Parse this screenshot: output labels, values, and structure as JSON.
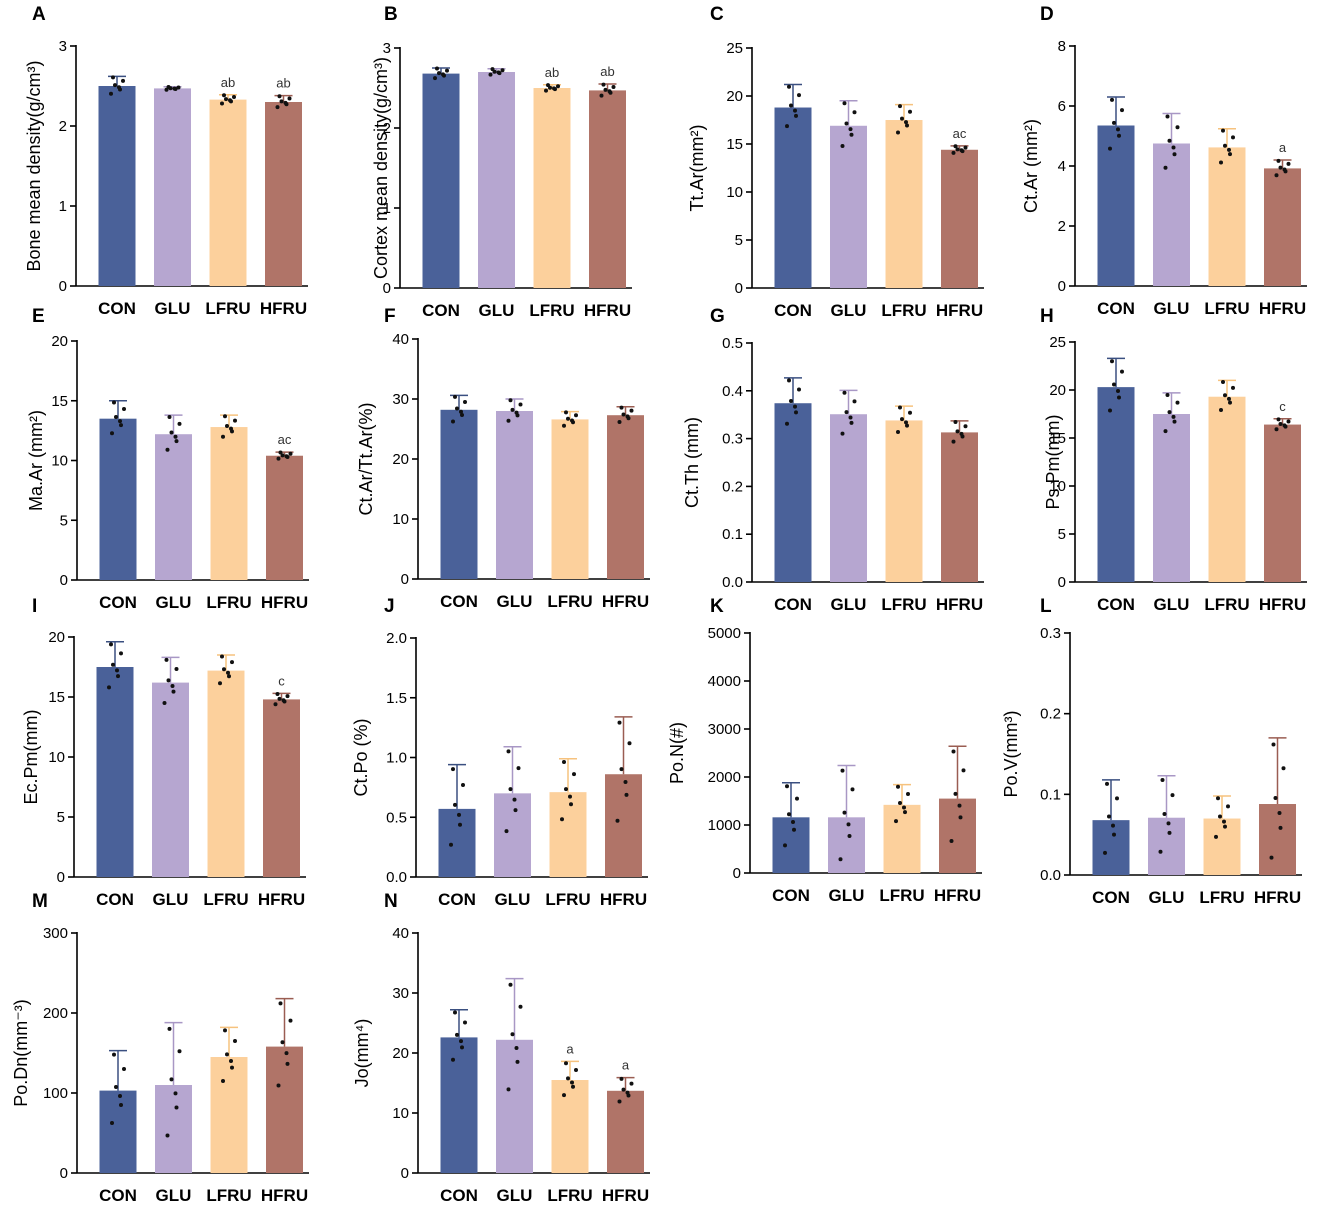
{
  "colors": [
    "#4a6199",
    "#b6a6d0",
    "#fcd09c",
    "#b07468"
  ],
  "chart_data": [
    {
      "type": "bar",
      "panel": "A",
      "ylabel": "Bone mean density(g/cm³)",
      "categories": [
        "CON",
        "GLU",
        "LFRU",
        "HFRU"
      ],
      "ylim": [
        0,
        3
      ],
      "yticks": [
        "0",
        "1",
        "2",
        "3"
      ],
      "values": [
        2.5,
        2.47,
        2.33,
        2.3
      ],
      "errors": [
        0.12,
        0.02,
        0.06,
        0.08
      ],
      "annotations": [
        "",
        "",
        "ab",
        "ab"
      ]
    },
    {
      "type": "bar",
      "panel": "B",
      "ylabel": "Cortex mean density(g/cm³)",
      "categories": [
        "CON",
        "GLU",
        "LFRU",
        "HFRU"
      ],
      "ylim": [
        0,
        3
      ],
      "yticks": [
        "0",
        "1",
        "2",
        "3"
      ],
      "values": [
        2.68,
        2.7,
        2.5,
        2.47
      ],
      "errors": [
        0.07,
        0.04,
        0.04,
        0.08
      ],
      "annotations": [
        "",
        "",
        "ab",
        "ab"
      ]
    },
    {
      "type": "bar",
      "panel": "C",
      "ylabel": "Tt.Ar(mm²)",
      "categories": [
        "CON",
        "GLU",
        "LFRU",
        "HFRU"
      ],
      "ylim": [
        0,
        25
      ],
      "yticks": [
        "0",
        "5",
        "10",
        "15",
        "20",
        "25"
      ],
      "values": [
        18.8,
        16.9,
        17.5,
        14.4
      ],
      "errors": [
        2.4,
        2.6,
        1.6,
        0.4
      ],
      "annotations": [
        "",
        "",
        "",
        "ac"
      ]
    },
    {
      "type": "bar",
      "panel": "D",
      "ylabel": "Ct.Ar (mm²)",
      "categories": [
        "CON",
        "GLU",
        "LFRU",
        "HFRU"
      ],
      "ylim": [
        0,
        8
      ],
      "yticks": [
        "0",
        "2",
        "4",
        "6",
        "8"
      ],
      "values": [
        5.35,
        4.75,
        4.62,
        3.92
      ],
      "errors": [
        0.95,
        1.0,
        0.62,
        0.28
      ],
      "annotations": [
        "",
        "",
        "",
        "a"
      ]
    },
    {
      "type": "bar",
      "panel": "E",
      "ylabel": "Ma.Ar (mm²)",
      "categories": [
        "CON",
        "GLU",
        "LFRU",
        "HFRU"
      ],
      "ylim": [
        0,
        20
      ],
      "yticks": [
        "0",
        "5",
        "10",
        "15",
        "20"
      ],
      "values": [
        13.5,
        12.2,
        12.8,
        10.4
      ],
      "errors": [
        1.5,
        1.6,
        1.0,
        0.3
      ],
      "annotations": [
        "",
        "",
        "",
        "ac"
      ]
    },
    {
      "type": "bar",
      "panel": "F",
      "ylabel": "Ct.Ar/Tt.Ar(%)",
      "categories": [
        "CON",
        "GLU",
        "LFRU",
        "HFRU"
      ],
      "ylim": [
        0,
        40
      ],
      "yticks": [
        "0",
        "10",
        "20",
        "30",
        "40"
      ],
      "values": [
        28.2,
        28.0,
        26.6,
        27.3
      ],
      "errors": [
        2.4,
        2.0,
        1.3,
        1.4
      ],
      "annotations": [
        "",
        "",
        "",
        ""
      ]
    },
    {
      "type": "bar",
      "panel": "G",
      "ylabel": "Ct.Th (mm)",
      "categories": [
        "CON",
        "GLU",
        "LFRU",
        "HFRU"
      ],
      "ylim": [
        0,
        0.5
      ],
      "yticks": [
        "0.0",
        "0.1",
        "0.2",
        "0.3",
        "0.4",
        "0.5"
      ],
      "values": [
        0.374,
        0.351,
        0.338,
        0.313
      ],
      "errors": [
        0.053,
        0.05,
        0.03,
        0.024
      ],
      "annotations": [
        "",
        "",
        "",
        ""
      ]
    },
    {
      "type": "bar",
      "panel": "H",
      "ylabel": "Ps.Pm(mm)",
      "categories": [
        "CON",
        "GLU",
        "LFRU",
        "HFRU"
      ],
      "ylim": [
        0,
        25
      ],
      "yticks": [
        "0",
        "5",
        "10",
        "15",
        "20",
        "25"
      ],
      "values": [
        20.3,
        17.5,
        19.3,
        16.4
      ],
      "errors": [
        3.0,
        2.2,
        1.7,
        0.6
      ],
      "annotations": [
        "",
        "",
        "",
        "c"
      ]
    },
    {
      "type": "bar",
      "panel": "I",
      "ylabel": "Ec.Pm(mm)",
      "categories": [
        "CON",
        "GLU",
        "LFRU",
        "HFRU"
      ],
      "ylim": [
        0,
        20
      ],
      "yticks": [
        "0",
        "5",
        "10",
        "15",
        "20"
      ],
      "values": [
        17.5,
        16.2,
        17.2,
        14.8
      ],
      "errors": [
        2.1,
        2.1,
        1.3,
        0.5
      ],
      "annotations": [
        "",
        "",
        "",
        "c"
      ]
    },
    {
      "type": "bar",
      "panel": "J",
      "ylabel": "Ct.Po (%)",
      "categories": [
        "CON",
        "GLU",
        "LFRU",
        "HFRU"
      ],
      "ylim": [
        0,
        2
      ],
      "yticks": [
        "0.0",
        "0.5",
        "1.0",
        "1.5",
        "2.0"
      ],
      "values": [
        0.57,
        0.7,
        0.71,
        0.86
      ],
      "errors": [
        0.37,
        0.39,
        0.28,
        0.48
      ],
      "annotations": [
        "",
        "",
        "",
        ""
      ]
    },
    {
      "type": "bar",
      "panel": "K",
      "ylabel": "Po.N(#)",
      "categories": [
        "CON",
        "GLU",
        "LFRU",
        "HFRU"
      ],
      "ylim": [
        0,
        5000
      ],
      "yticks": [
        "0",
        "1000",
        "2000",
        "3000",
        "4000",
        "5000"
      ],
      "values": [
        1160,
        1160,
        1420,
        1550
      ],
      "errors": [
        720,
        1080,
        420,
        1090
      ],
      "annotations": [
        "",
        "",
        "",
        ""
      ]
    },
    {
      "type": "bar",
      "panel": "L",
      "ylabel": "Po.V(mm³)",
      "categories": [
        "CON",
        "GLU",
        "LFRU",
        "HFRU"
      ],
      "ylim": [
        0,
        0.3
      ],
      "yticks": [
        "0.0",
        "0.1",
        "0.2",
        "0.3"
      ],
      "values": [
        0.068,
        0.071,
        0.07,
        0.088
      ],
      "errors": [
        0.05,
        0.052,
        0.028,
        0.082
      ],
      "annotations": [
        "",
        "",
        "",
        ""
      ]
    },
    {
      "type": "bar",
      "panel": "M",
      "ylabel": "Po.Dn(mm⁻³)",
      "categories": [
        "CON",
        "GLU",
        "LFRU",
        "HFRU"
      ],
      "ylim": [
        0,
        300
      ],
      "yticks": [
        "0",
        "100",
        "200",
        "300"
      ],
      "values": [
        103,
        110,
        145,
        158
      ],
      "errors": [
        50,
        78,
        37,
        60
      ],
      "annotations": [
        "",
        "",
        "",
        ""
      ]
    },
    {
      "type": "bar",
      "panel": "N",
      "ylabel": "Jo(mm⁴)",
      "categories": [
        "CON",
        "GLU",
        "LFRU",
        "HFRU"
      ],
      "ylim": [
        0,
        40
      ],
      "yticks": [
        "0",
        "10",
        "20",
        "30",
        "40"
      ],
      "values": [
        22.6,
        22.2,
        15.5,
        13.7
      ],
      "errors": [
        4.6,
        10.2,
        3.1,
        2.2
      ],
      "annotations": [
        "",
        "",
        "a",
        "a"
      ]
    }
  ]
}
